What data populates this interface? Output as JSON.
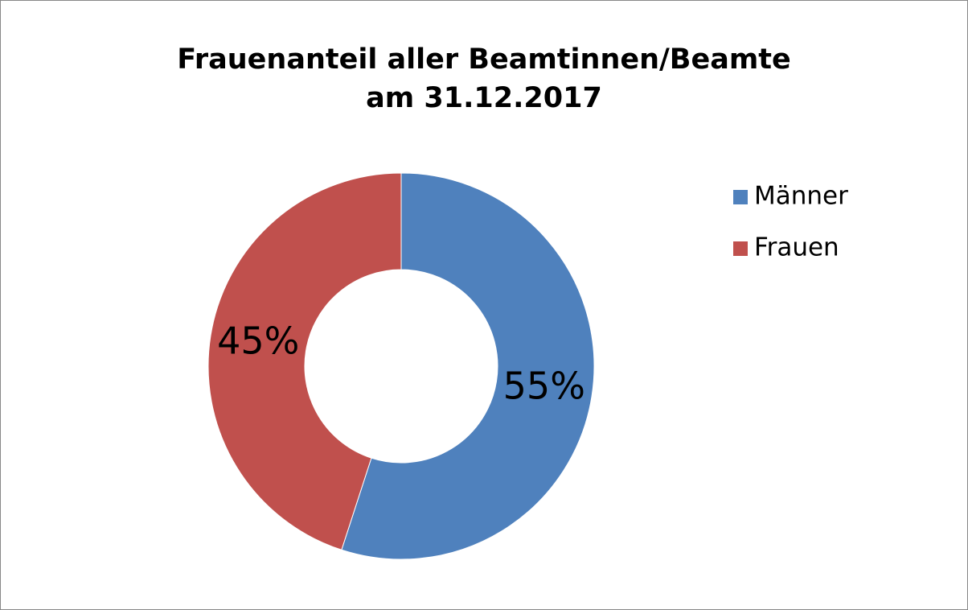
{
  "chart_data": {
    "type": "donut",
    "title": [
      "Frauenanteil aller Beamtinnen/Beamte",
      "am 31.12.2017"
    ],
    "categories": [
      "Männer",
      "Frauen"
    ],
    "values": [
      55,
      45
    ],
    "value_labels": [
      "55%",
      "45%"
    ],
    "colors": [
      "#4f81bd",
      "#c0504d"
    ],
    "legend": "right"
  }
}
